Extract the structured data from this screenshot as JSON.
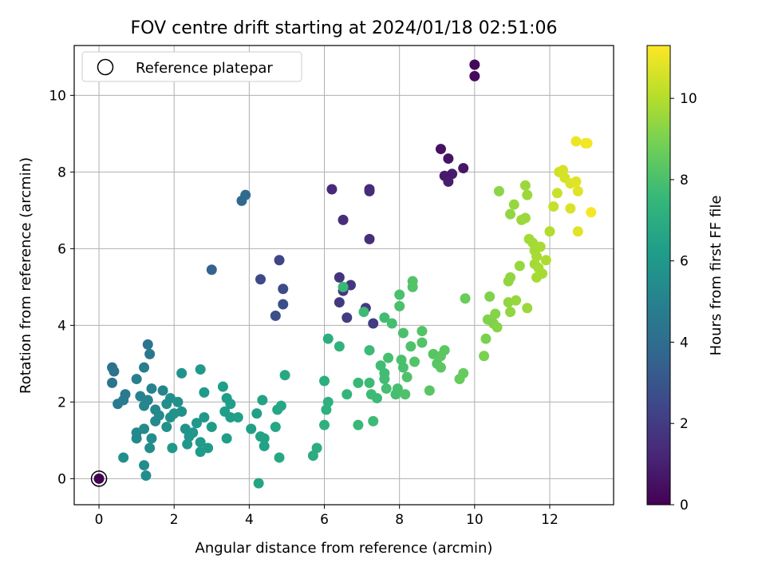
{
  "chart_data": {
    "type": "scatter",
    "title": "FOV centre drift starting at 2024/01/18 02:51:06",
    "xlabel": "Angular distance from reference (arcmin)",
    "ylabel": "Rotation from reference (arcmin)",
    "xlim": [
      -0.66,
      13.7
    ],
    "ylim": [
      -0.68,
      11.3
    ],
    "xticks": [
      0,
      2,
      4,
      6,
      8,
      10,
      12
    ],
    "yticks": [
      0,
      2,
      4,
      6,
      8,
      10
    ],
    "grid": true,
    "legend": {
      "placement": "top-left",
      "entries": [
        "Reference platepar"
      ]
    },
    "reference_point": {
      "x": 0,
      "y": 0
    },
    "colorbar": {
      "label": "Hours from first FF file",
      "min": 0,
      "max": 11.3,
      "ticks": [
        0,
        2,
        4,
        6,
        8,
        10
      ],
      "colormap": "viridis"
    },
    "points": [
      {
        "x": 0.0,
        "y": 0.0,
        "h": 0.0
      },
      {
        "x": 10.0,
        "y": 10.8,
        "h": 0.2
      },
      {
        "x": 10.0,
        "y": 10.5,
        "h": 0.3
      },
      {
        "x": 9.1,
        "y": 8.6,
        "h": 0.5
      },
      {
        "x": 9.3,
        "y": 8.35,
        "h": 0.6
      },
      {
        "x": 9.7,
        "y": 8.1,
        "h": 0.7
      },
      {
        "x": 9.2,
        "y": 7.9,
        "h": 0.8
      },
      {
        "x": 9.4,
        "y": 7.95,
        "h": 0.8
      },
      {
        "x": 9.3,
        "y": 7.75,
        "h": 0.9
      },
      {
        "x": 6.2,
        "y": 7.55,
        "h": 1.3
      },
      {
        "x": 7.2,
        "y": 7.55,
        "h": 1.3
      },
      {
        "x": 7.2,
        "y": 7.5,
        "h": 1.4
      },
      {
        "x": 6.5,
        "y": 6.75,
        "h": 1.5
      },
      {
        "x": 7.2,
        "y": 6.25,
        "h": 1.5
      },
      {
        "x": 6.4,
        "y": 5.25,
        "h": 1.7
      },
      {
        "x": 6.7,
        "y": 5.05,
        "h": 1.8
      },
      {
        "x": 6.5,
        "y": 4.9,
        "h": 1.8
      },
      {
        "x": 6.4,
        "y": 4.6,
        "h": 1.9
      },
      {
        "x": 7.1,
        "y": 4.45,
        "h": 1.9
      },
      {
        "x": 6.6,
        "y": 4.2,
        "h": 2.0
      },
      {
        "x": 7.3,
        "y": 4.05,
        "h": 2.0
      },
      {
        "x": 4.8,
        "y": 5.7,
        "h": 2.4
      },
      {
        "x": 4.3,
        "y": 5.2,
        "h": 2.5
      },
      {
        "x": 4.9,
        "y": 4.95,
        "h": 2.6
      },
      {
        "x": 4.9,
        "y": 4.55,
        "h": 2.7
      },
      {
        "x": 4.7,
        "y": 4.25,
        "h": 2.8
      },
      {
        "x": 3.0,
        "y": 5.45,
        "h": 3.6
      },
      {
        "x": 3.8,
        "y": 7.25,
        "h": 3.8
      },
      {
        "x": 3.9,
        "y": 7.4,
        "h": 3.9
      },
      {
        "x": 0.35,
        "y": 2.9,
        "h": 4.2
      },
      {
        "x": 0.4,
        "y": 2.8,
        "h": 4.3
      },
      {
        "x": 0.35,
        "y": 2.5,
        "h": 4.3
      },
      {
        "x": 1.3,
        "y": 3.5,
        "h": 4.4
      },
      {
        "x": 1.35,
        "y": 3.25,
        "h": 4.5
      },
      {
        "x": 0.5,
        "y": 1.95,
        "h": 4.6
      },
      {
        "x": 0.7,
        "y": 2.2,
        "h": 4.6
      },
      {
        "x": 0.65,
        "y": 2.05,
        "h": 4.7
      },
      {
        "x": 1.2,
        "y": 2.9,
        "h": 4.8
      },
      {
        "x": 1.0,
        "y": 2.6,
        "h": 4.9
      },
      {
        "x": 1.1,
        "y": 2.15,
        "h": 5.0
      },
      {
        "x": 1.4,
        "y": 2.35,
        "h": 5.0
      },
      {
        "x": 1.3,
        "y": 2.05,
        "h": 5.1
      },
      {
        "x": 1.7,
        "y": 2.3,
        "h": 5.1
      },
      {
        "x": 1.2,
        "y": 1.9,
        "h": 5.2
      },
      {
        "x": 1.5,
        "y": 1.8,
        "h": 5.2
      },
      {
        "x": 1.0,
        "y": 1.2,
        "h": 5.3
      },
      {
        "x": 1.0,
        "y": 1.05,
        "h": 5.3
      },
      {
        "x": 1.2,
        "y": 1.3,
        "h": 5.4
      },
      {
        "x": 1.5,
        "y": 1.5,
        "h": 5.4
      },
      {
        "x": 1.6,
        "y": 1.65,
        "h": 5.4
      },
      {
        "x": 1.4,
        "y": 1.05,
        "h": 5.5
      },
      {
        "x": 1.35,
        "y": 0.8,
        "h": 5.5
      },
      {
        "x": 1.2,
        "y": 0.35,
        "h": 5.5
      },
      {
        "x": 1.25,
        "y": 0.08,
        "h": 5.5
      },
      {
        "x": 0.65,
        "y": 0.55,
        "h": 5.6
      },
      {
        "x": 1.8,
        "y": 1.95,
        "h": 5.6
      },
      {
        "x": 1.9,
        "y": 2.1,
        "h": 5.6
      },
      {
        "x": 2.1,
        "y": 2.0,
        "h": 5.7
      },
      {
        "x": 1.9,
        "y": 1.6,
        "h": 5.7
      },
      {
        "x": 2.2,
        "y": 1.75,
        "h": 5.7
      },
      {
        "x": 1.8,
        "y": 1.35,
        "h": 5.7
      },
      {
        "x": 2.0,
        "y": 1.7,
        "h": 5.8
      },
      {
        "x": 2.2,
        "y": 2.75,
        "h": 5.8
      },
      {
        "x": 2.3,
        "y": 1.3,
        "h": 5.8
      },
      {
        "x": 2.4,
        "y": 1.1,
        "h": 5.9
      },
      {
        "x": 2.5,
        "y": 1.2,
        "h": 5.9
      },
      {
        "x": 2.6,
        "y": 1.45,
        "h": 5.9
      },
      {
        "x": 2.8,
        "y": 1.6,
        "h": 6.0
      },
      {
        "x": 1.95,
        "y": 0.8,
        "h": 6.0
      },
      {
        "x": 2.35,
        "y": 0.9,
        "h": 6.0
      },
      {
        "x": 2.7,
        "y": 2.85,
        "h": 6.1
      },
      {
        "x": 2.8,
        "y": 2.25,
        "h": 6.1
      },
      {
        "x": 2.7,
        "y": 0.95,
        "h": 6.1
      },
      {
        "x": 2.9,
        "y": 0.8,
        "h": 6.2
      },
      {
        "x": 2.7,
        "y": 0.7,
        "h": 6.2
      },
      {
        "x": 3.0,
        "y": 1.35,
        "h": 6.2
      },
      {
        "x": 3.3,
        "y": 2.4,
        "h": 6.3
      },
      {
        "x": 3.4,
        "y": 2.1,
        "h": 6.3
      },
      {
        "x": 3.5,
        "y": 1.95,
        "h": 6.3
      },
      {
        "x": 3.35,
        "y": 1.75,
        "h": 6.3
      },
      {
        "x": 3.5,
        "y": 1.6,
        "h": 6.3
      },
      {
        "x": 3.4,
        "y": 1.05,
        "h": 6.3
      },
      {
        "x": 3.7,
        "y": 1.6,
        "h": 6.4
      },
      {
        "x": 4.05,
        "y": 1.3,
        "h": 6.4
      },
      {
        "x": 4.2,
        "y": 1.7,
        "h": 6.4
      },
      {
        "x": 4.35,
        "y": 2.05,
        "h": 6.5
      },
      {
        "x": 4.3,
        "y": 1.1,
        "h": 6.5
      },
      {
        "x": 4.4,
        "y": 1.05,
        "h": 6.5
      },
      {
        "x": 4.4,
        "y": 0.85,
        "h": 6.5
      },
      {
        "x": 4.25,
        "y": -0.12,
        "h": 6.6
      },
      {
        "x": 4.75,
        "y": 1.8,
        "h": 6.7
      },
      {
        "x": 4.85,
        "y": 1.9,
        "h": 6.7
      },
      {
        "x": 4.7,
        "y": 1.35,
        "h": 6.7
      },
      {
        "x": 4.8,
        "y": 0.55,
        "h": 6.8
      },
      {
        "x": 4.95,
        "y": 2.7,
        "h": 6.8
      },
      {
        "x": 5.7,
        "y": 0.6,
        "h": 7.0
      },
      {
        "x": 5.8,
        "y": 0.8,
        "h": 7.0
      },
      {
        "x": 6.0,
        "y": 2.55,
        "h": 7.1
      },
      {
        "x": 6.1,
        "y": 3.65,
        "h": 7.1
      },
      {
        "x": 6.1,
        "y": 2.0,
        "h": 7.2
      },
      {
        "x": 6.0,
        "y": 1.4,
        "h": 7.2
      },
      {
        "x": 6.05,
        "y": 1.8,
        "h": 7.2
      },
      {
        "x": 6.4,
        "y": 3.45,
        "h": 7.3
      },
      {
        "x": 6.6,
        "y": 2.2,
        "h": 7.4
      },
      {
        "x": 6.5,
        "y": 5.0,
        "h": 7.6
      },
      {
        "x": 6.9,
        "y": 1.4,
        "h": 7.6
      },
      {
        "x": 6.9,
        "y": 2.5,
        "h": 7.6
      },
      {
        "x": 7.05,
        "y": 4.35,
        "h": 7.7
      },
      {
        "x": 7.2,
        "y": 3.35,
        "h": 7.7
      },
      {
        "x": 7.2,
        "y": 2.5,
        "h": 7.7
      },
      {
        "x": 7.25,
        "y": 2.2,
        "h": 7.7
      },
      {
        "x": 7.3,
        "y": 1.5,
        "h": 7.7
      },
      {
        "x": 7.4,
        "y": 2.1,
        "h": 7.7
      },
      {
        "x": 7.5,
        "y": 2.95,
        "h": 7.8
      },
      {
        "x": 7.6,
        "y": 4.2,
        "h": 7.8
      },
      {
        "x": 7.6,
        "y": 2.75,
        "h": 7.8
      },
      {
        "x": 7.6,
        "y": 2.6,
        "h": 7.8
      },
      {
        "x": 7.7,
        "y": 3.15,
        "h": 7.9
      },
      {
        "x": 7.8,
        "y": 4.05,
        "h": 7.9
      },
      {
        "x": 7.65,
        "y": 2.35,
        "h": 7.9
      },
      {
        "x": 7.9,
        "y": 2.2,
        "h": 7.9
      },
      {
        "x": 7.95,
        "y": 2.35,
        "h": 7.9
      },
      {
        "x": 8.0,
        "y": 4.8,
        "h": 8.0
      },
      {
        "x": 8.0,
        "y": 4.5,
        "h": 8.0
      },
      {
        "x": 8.1,
        "y": 3.8,
        "h": 8.0
      },
      {
        "x": 8.05,
        "y": 3.1,
        "h": 8.0
      },
      {
        "x": 8.1,
        "y": 2.9,
        "h": 8.0
      },
      {
        "x": 8.2,
        "y": 2.65,
        "h": 8.1
      },
      {
        "x": 8.15,
        "y": 2.2,
        "h": 8.1
      },
      {
        "x": 8.3,
        "y": 3.45,
        "h": 8.1
      },
      {
        "x": 8.35,
        "y": 5.15,
        "h": 8.2
      },
      {
        "x": 8.35,
        "y": 5.0,
        "h": 8.2
      },
      {
        "x": 8.4,
        "y": 3.05,
        "h": 8.2
      },
      {
        "x": 8.6,
        "y": 3.55,
        "h": 8.2
      },
      {
        "x": 8.6,
        "y": 3.85,
        "h": 8.2
      },
      {
        "x": 8.8,
        "y": 2.3,
        "h": 8.3
      },
      {
        "x": 8.9,
        "y": 3.25,
        "h": 8.3
      },
      {
        "x": 9.0,
        "y": 3.0,
        "h": 8.3
      },
      {
        "x": 9.1,
        "y": 2.9,
        "h": 8.4
      },
      {
        "x": 9.1,
        "y": 3.2,
        "h": 8.4
      },
      {
        "x": 9.2,
        "y": 3.35,
        "h": 8.4
      },
      {
        "x": 9.6,
        "y": 2.6,
        "h": 8.6
      },
      {
        "x": 9.7,
        "y": 2.75,
        "h": 8.6
      },
      {
        "x": 9.75,
        "y": 4.7,
        "h": 8.7
      },
      {
        "x": 10.25,
        "y": 3.2,
        "h": 9.0
      },
      {
        "x": 10.3,
        "y": 3.65,
        "h": 9.0
      },
      {
        "x": 10.35,
        "y": 4.15,
        "h": 9.1
      },
      {
        "x": 10.4,
        "y": 4.75,
        "h": 9.1
      },
      {
        "x": 10.5,
        "y": 4.05,
        "h": 9.1
      },
      {
        "x": 10.55,
        "y": 4.3,
        "h": 9.2
      },
      {
        "x": 10.6,
        "y": 3.95,
        "h": 9.2
      },
      {
        "x": 10.65,
        "y": 7.5,
        "h": 9.3
      },
      {
        "x": 10.9,
        "y": 5.15,
        "h": 9.4
      },
      {
        "x": 10.95,
        "y": 5.25,
        "h": 9.4
      },
      {
        "x": 10.9,
        "y": 4.6,
        "h": 9.4
      },
      {
        "x": 10.95,
        "y": 4.35,
        "h": 9.4
      },
      {
        "x": 10.95,
        "y": 6.9,
        "h": 9.4
      },
      {
        "x": 11.05,
        "y": 7.15,
        "h": 9.5
      },
      {
        "x": 11.1,
        "y": 4.65,
        "h": 9.5
      },
      {
        "x": 11.2,
        "y": 5.55,
        "h": 9.5
      },
      {
        "x": 11.25,
        "y": 6.75,
        "h": 9.6
      },
      {
        "x": 11.35,
        "y": 6.8,
        "h": 9.6
      },
      {
        "x": 11.35,
        "y": 7.65,
        "h": 9.6
      },
      {
        "x": 11.4,
        "y": 7.4,
        "h": 9.6
      },
      {
        "x": 11.4,
        "y": 4.45,
        "h": 9.6
      },
      {
        "x": 11.45,
        "y": 6.25,
        "h": 9.7
      },
      {
        "x": 11.55,
        "y": 6.15,
        "h": 9.7
      },
      {
        "x": 11.6,
        "y": 5.95,
        "h": 9.7
      },
      {
        "x": 11.6,
        "y": 5.6,
        "h": 9.7
      },
      {
        "x": 11.65,
        "y": 5.25,
        "h": 9.8
      },
      {
        "x": 11.65,
        "y": 5.8,
        "h": 9.8
      },
      {
        "x": 11.7,
        "y": 5.5,
        "h": 9.8
      },
      {
        "x": 11.8,
        "y": 5.35,
        "h": 9.8
      },
      {
        "x": 11.75,
        "y": 6.05,
        "h": 9.8
      },
      {
        "x": 11.9,
        "y": 5.7,
        "h": 9.9
      },
      {
        "x": 12.0,
        "y": 6.45,
        "h": 10.0
      },
      {
        "x": 12.1,
        "y": 7.1,
        "h": 10.3
      },
      {
        "x": 12.2,
        "y": 7.45,
        "h": 10.4
      },
      {
        "x": 12.25,
        "y": 8.0,
        "h": 10.5
      },
      {
        "x": 12.35,
        "y": 8.05,
        "h": 10.6
      },
      {
        "x": 12.4,
        "y": 7.85,
        "h": 10.6
      },
      {
        "x": 12.55,
        "y": 7.7,
        "h": 10.7
      },
      {
        "x": 12.55,
        "y": 7.05,
        "h": 10.7
      },
      {
        "x": 12.7,
        "y": 7.75,
        "h": 10.8
      },
      {
        "x": 12.75,
        "y": 7.5,
        "h": 10.8
      },
      {
        "x": 12.75,
        "y": 6.45,
        "h": 10.8
      },
      {
        "x": 12.7,
        "y": 8.8,
        "h": 11.0
      },
      {
        "x": 12.95,
        "y": 8.75,
        "h": 11.1
      },
      {
        "x": 13.0,
        "y": 8.75,
        "h": 11.1
      },
      {
        "x": 13.1,
        "y": 6.95,
        "h": 11.2
      }
    ]
  }
}
